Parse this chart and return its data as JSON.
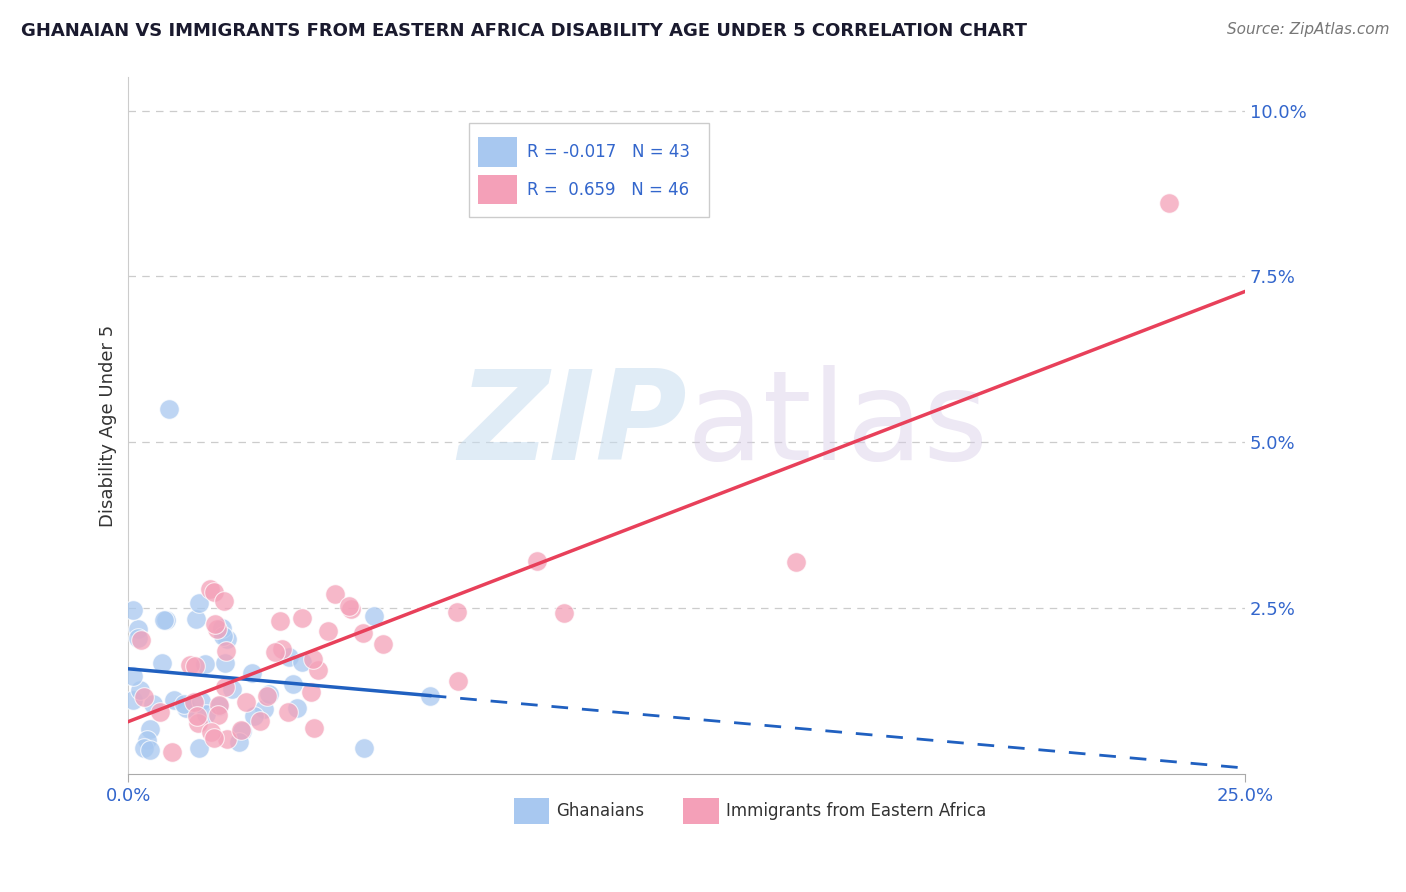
{
  "title": "GHANAIAN VS IMMIGRANTS FROM EASTERN AFRICA DISABILITY AGE UNDER 5 CORRELATION CHART",
  "source": "Source: ZipAtlas.com",
  "ylabel": "Disability Age Under 5",
  "ghanaian_color": "#a8c8f0",
  "immigrant_color": "#f4a0b8",
  "ghanaian_line_color": "#2060c0",
  "immigrant_line_color": "#e8405a",
  "background_color": "#ffffff",
  "ghanaian_R": -0.017,
  "ghanaian_N": 43,
  "immigrant_R": 0.659,
  "immigrant_N": 46,
  "xlim": [
    0.0,
    0.25
  ],
  "ylim": [
    0.0,
    0.105
  ],
  "ytick_vals": [
    0.025,
    0.05,
    0.075,
    0.1
  ],
  "ytick_labels": [
    "2.5%",
    "5.0%",
    "7.5%",
    "10.0%"
  ],
  "xtick_vals": [
    0.0,
    0.25
  ],
  "xtick_labels": [
    "0.0%",
    "25.0%"
  ]
}
